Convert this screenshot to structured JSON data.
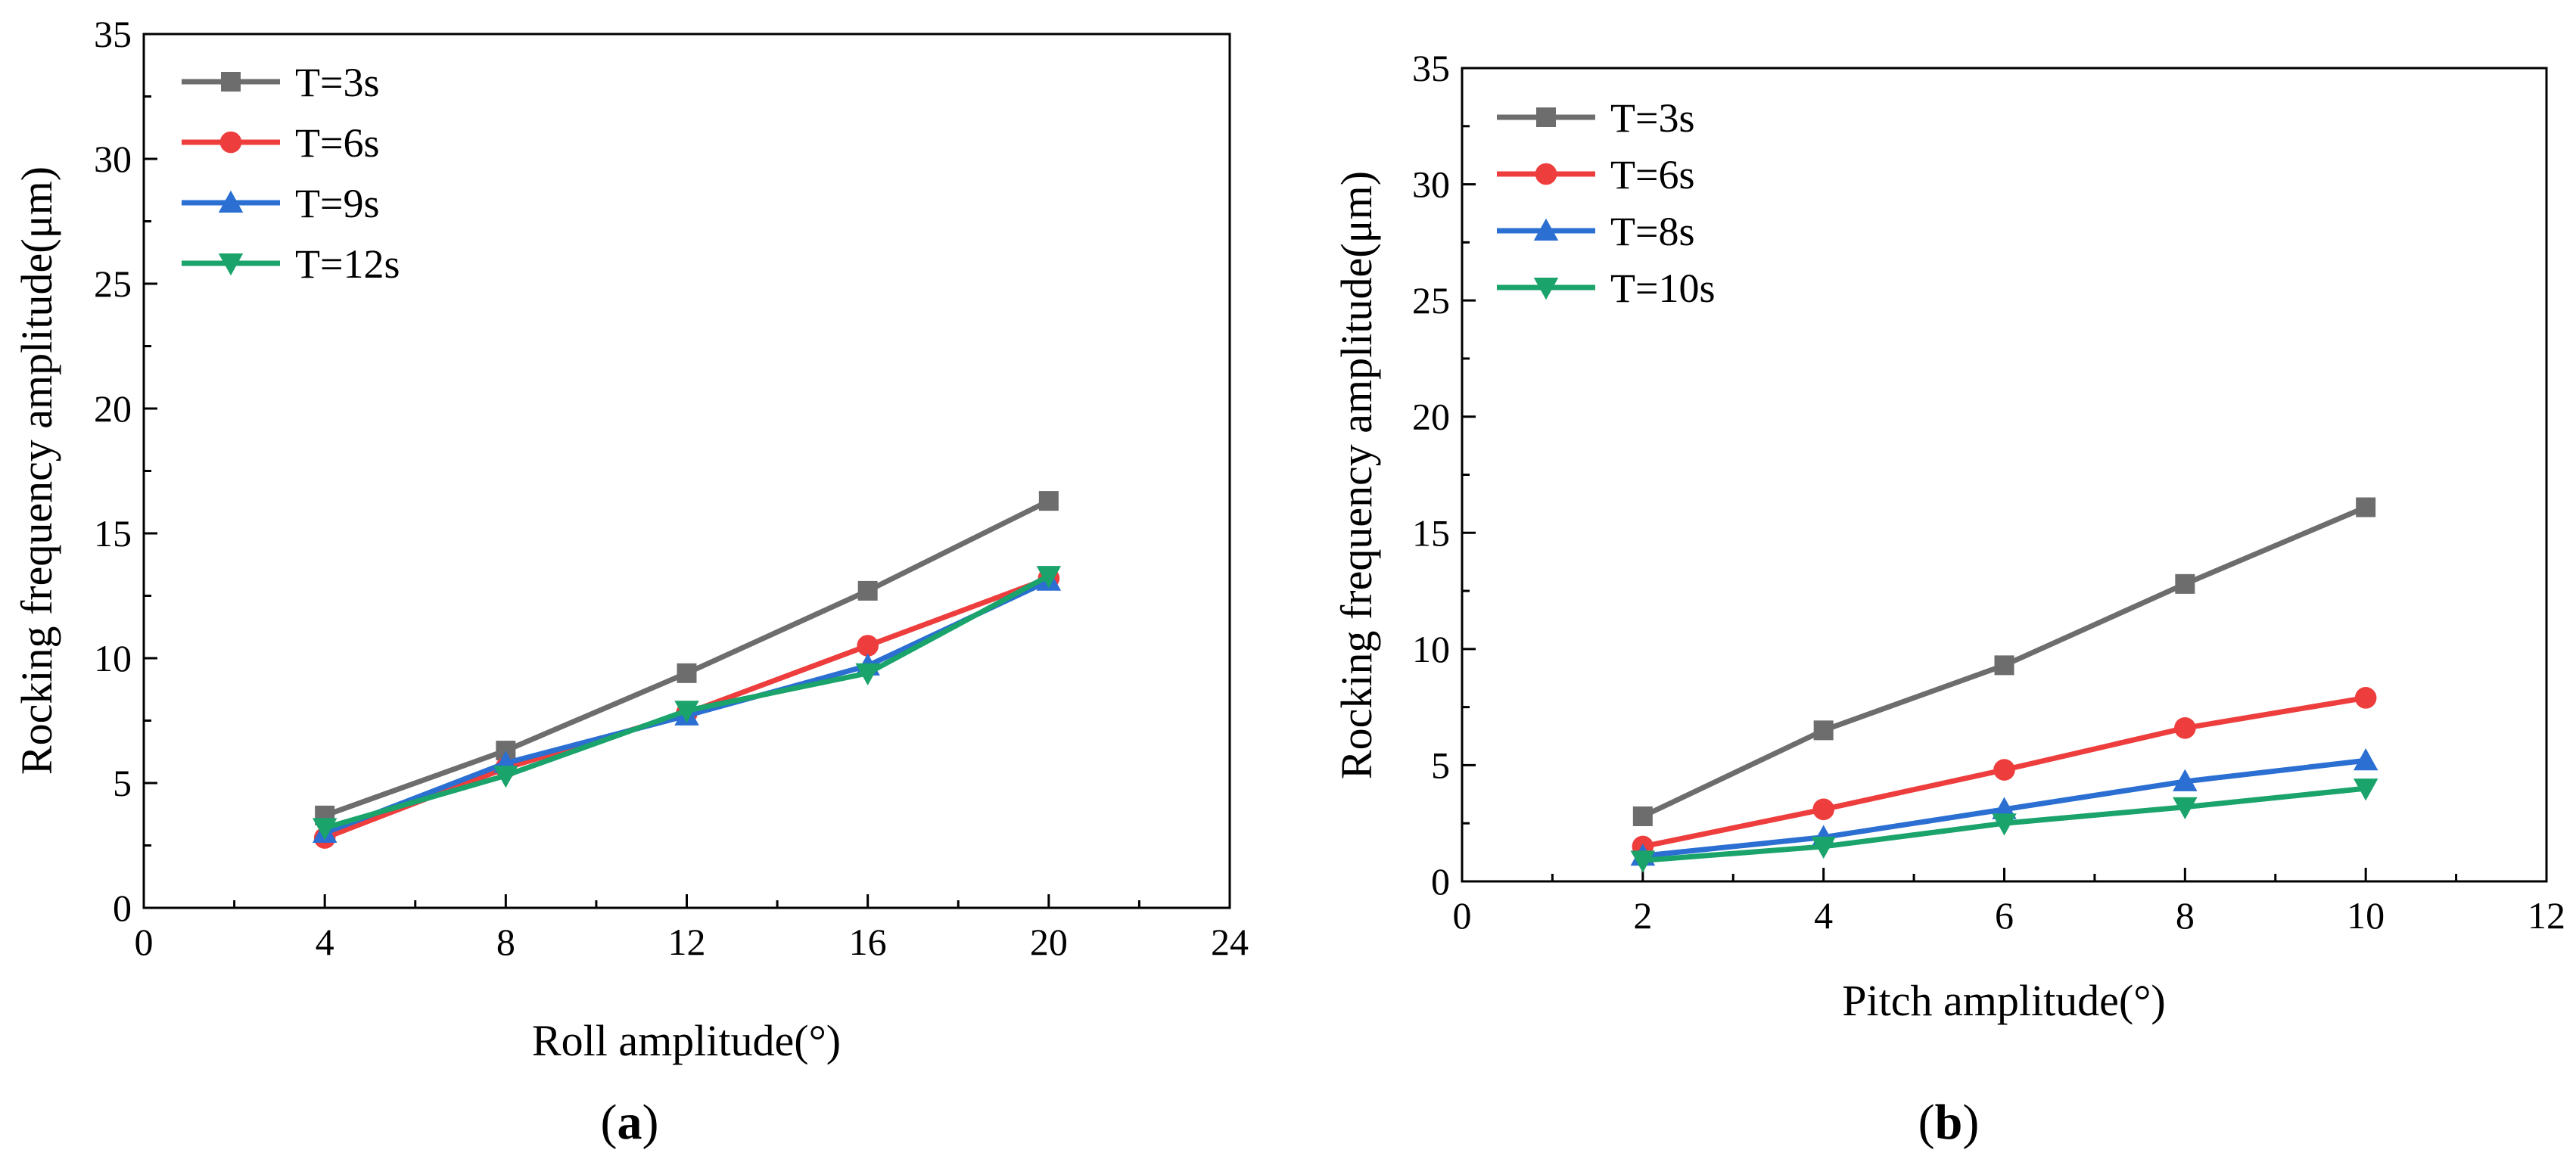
{
  "chart_data": [
    {
      "type": "line",
      "panel_label": "a",
      "xlabel": "Roll amplitude(°)",
      "ylabel": "Rocking frequency amplitude(μm)",
      "xlim": [
        0,
        24
      ],
      "ylim": [
        0,
        35
      ],
      "xticks": [
        0,
        4,
        8,
        12,
        16,
        20,
        24
      ],
      "yticks": [
        0,
        5,
        10,
        15,
        20,
        25,
        30,
        35
      ],
      "legend_position": "top-left",
      "x": [
        4,
        8,
        12,
        16,
        20
      ],
      "series": [
        {
          "name": "T=3s",
          "color": "#6d6d6d",
          "marker": "square",
          "values": [
            3.7,
            6.3,
            9.4,
            12.7,
            16.3
          ]
        },
        {
          "name": "T=6s",
          "color": "#ee3d3d",
          "marker": "circle",
          "values": [
            2.8,
            5.6,
            7.8,
            10.5,
            13.2
          ]
        },
        {
          "name": "T=9s",
          "color": "#2a6fd1",
          "marker": "triangle-up",
          "values": [
            3.0,
            5.8,
            7.7,
            9.7,
            13.1
          ]
        },
        {
          "name": "T=12s",
          "color": "#1aa36b",
          "marker": "triangle-down",
          "values": [
            3.2,
            5.3,
            7.9,
            9.4,
            13.3
          ]
        }
      ]
    },
    {
      "type": "line",
      "panel_label": "b",
      "xlabel": "Pitch amplitude(°)",
      "ylabel": "Rocking frequency amplitude(μm)",
      "xlim": [
        0,
        12
      ],
      "ylim": [
        0,
        35
      ],
      "xticks": [
        0,
        2,
        4,
        6,
        8,
        10,
        12
      ],
      "yticks": [
        0,
        5,
        10,
        15,
        20,
        25,
        30,
        35
      ],
      "legend_position": "top-left",
      "x": [
        2,
        4,
        6,
        8,
        10
      ],
      "series": [
        {
          "name": "T=3s",
          "color": "#6d6d6d",
          "marker": "square",
          "values": [
            2.8,
            6.5,
            9.3,
            12.8,
            16.1
          ]
        },
        {
          "name": "T=6s",
          "color": "#ee3d3d",
          "marker": "circle",
          "values": [
            1.5,
            3.1,
            4.8,
            6.6,
            7.9
          ]
        },
        {
          "name": "T=8s",
          "color": "#2a6fd1",
          "marker": "triangle-up",
          "values": [
            1.1,
            1.9,
            3.1,
            4.3,
            5.2
          ]
        },
        {
          "name": "T=10s",
          "color": "#1aa36b",
          "marker": "triangle-down",
          "values": [
            0.9,
            1.5,
            2.5,
            3.2,
            4.0
          ]
        }
      ]
    }
  ]
}
